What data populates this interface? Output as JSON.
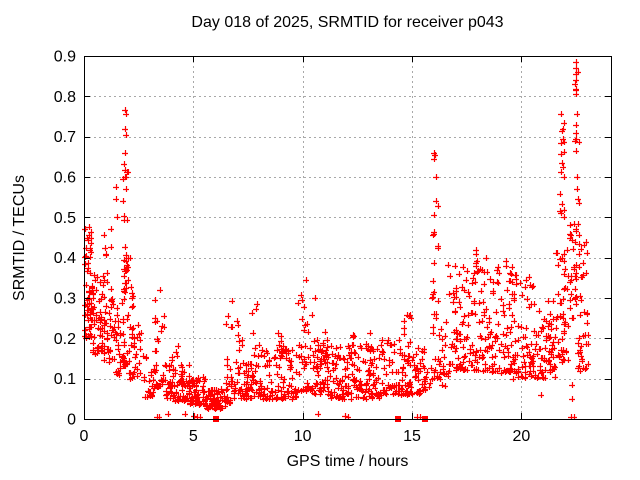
{
  "figure": {
    "title": "Day 018 of 2025, SRMTID for receiver p043",
    "xlabel": "GPS time / hours",
    "ylabel": "SRMTID / TECUs"
  },
  "chart_data": {
    "type": "scatter",
    "title": "Day 018 of 2025, SRMTID for receiver p043",
    "xlabel": "GPS time / hours",
    "ylabel": "SRMTID / TECUs",
    "xlim": [
      0,
      24.1
    ],
    "ylim": [
      0,
      0.9
    ],
    "xticks": {
      "values": [
        0,
        5,
        10,
        15,
        20
      ],
      "labels": [
        "0",
        "5",
        "10",
        "15",
        "20"
      ]
    },
    "yticks": {
      "values": [
        0,
        0.1,
        0.2,
        0.3,
        0.4,
        0.5,
        0.6,
        0.7,
        0.8,
        0.9
      ],
      "labels": [
        "0",
        "0.1",
        "0.2",
        "0.3",
        "0.4",
        "0.5",
        "0.6",
        "0.7",
        "0.8",
        "0.9"
      ]
    },
    "grid": true,
    "legend_position": "none",
    "series_name": "SRMTID",
    "marker": "plus",
    "marker_color": "#ff0000",
    "grid_color": "#a8a8a8",
    "border_color": "#000000",
    "background_color": "#ffffff",
    "seed": 43,
    "clusters": [
      {
        "x0": 0.02,
        "x1": 0.35,
        "y0": 0.2,
        "y1": 0.48,
        "n": 45,
        "bias": 1.4
      },
      {
        "x0": 0.05,
        "x1": 0.45,
        "y0": 0.26,
        "y1": 0.34,
        "n": 18,
        "bias": 1.0
      },
      {
        "x0": 0.3,
        "x1": 0.95,
        "y0": 0.16,
        "y1": 0.36,
        "n": 55,
        "bias": 1.6
      },
      {
        "x0": 0.9,
        "x1": 1.3,
        "y0": 0.14,
        "y1": 0.48,
        "n": 35,
        "bias": 2.0
      },
      {
        "x0": 1.3,
        "x1": 1.65,
        "y0": 0.11,
        "y1": 0.3,
        "n": 26,
        "bias": 1.8
      },
      {
        "x0": 1.75,
        "x1": 2.0,
        "y0": 0.13,
        "y1": 0.66,
        "n": 40,
        "bias": 2.0
      },
      {
        "x0": 1.8,
        "x1": 2.0,
        "y0": 0.28,
        "y1": 0.4,
        "n": 14,
        "bias": 1.0
      },
      {
        "x0": 2.0,
        "x1": 2.25,
        "y0": 0.22,
        "y1": 0.4,
        "n": 12,
        "bias": 1.4
      },
      {
        "x0": 2.05,
        "x1": 2.6,
        "y0": 0.1,
        "y1": 0.24,
        "n": 30,
        "bias": 1.6
      },
      {
        "x0": 2.6,
        "x1": 3.2,
        "y0": 0.055,
        "y1": 0.16,
        "n": 24,
        "bias": 1.5
      },
      {
        "x0": 3.25,
        "x1": 3.7,
        "y0": 0.08,
        "y1": 0.33,
        "n": 32,
        "bias": 2.2
      },
      {
        "x0": 3.7,
        "x1": 4.85,
        "y0": 0.045,
        "y1": 0.135,
        "n": 75,
        "bias": 1.6
      },
      {
        "x0": 4.0,
        "x1": 4.35,
        "y0": 0.12,
        "y1": 0.19,
        "n": 7,
        "bias": 1.2
      },
      {
        "x0": 4.85,
        "x1": 5.6,
        "y0": 0.035,
        "y1": 0.105,
        "n": 60,
        "bias": 1.5
      },
      {
        "x0": 5.6,
        "x1": 6.45,
        "y0": 0.025,
        "y1": 0.075,
        "n": 55,
        "bias": 1.3
      },
      {
        "x0": 6.45,
        "x1": 6.8,
        "y0": 0.04,
        "y1": 0.31,
        "n": 26,
        "bias": 2.4
      },
      {
        "x0": 6.8,
        "x1": 7.65,
        "y0": 0.05,
        "y1": 0.145,
        "n": 48,
        "bias": 1.5
      },
      {
        "x0": 7.0,
        "x1": 7.25,
        "y0": 0.12,
        "y1": 0.25,
        "n": 8,
        "bias": 1.4
      },
      {
        "x0": 7.65,
        "x1": 8.1,
        "y0": 0.055,
        "y1": 0.29,
        "n": 30,
        "bias": 2.2
      },
      {
        "x0": 8.1,
        "x1": 9.75,
        "y0": 0.05,
        "y1": 0.175,
        "n": 95,
        "bias": 1.6
      },
      {
        "x0": 8.85,
        "x1": 9.1,
        "y0": 0.14,
        "y1": 0.215,
        "n": 9,
        "bias": 1.2
      },
      {
        "x0": 9.75,
        "x1": 10.45,
        "y0": 0.07,
        "y1": 0.31,
        "n": 38,
        "bias": 2.0
      },
      {
        "x0": 10.45,
        "x1": 11.25,
        "y0": 0.06,
        "y1": 0.2,
        "n": 55,
        "bias": 1.6
      },
      {
        "x0": 10.9,
        "x1": 11.15,
        "y0": 0.14,
        "y1": 0.25,
        "n": 8,
        "bias": 1.2
      },
      {
        "x0": 11.25,
        "x1": 13.6,
        "y0": 0.05,
        "y1": 0.185,
        "n": 140,
        "bias": 1.6
      },
      {
        "x0": 12.2,
        "x1": 12.45,
        "y0": 0.12,
        "y1": 0.225,
        "n": 10,
        "bias": 1.2
      },
      {
        "x0": 12.9,
        "x1": 13.15,
        "y0": 0.12,
        "y1": 0.22,
        "n": 8,
        "bias": 1.2
      },
      {
        "x0": 13.6,
        "x1": 15.35,
        "y0": 0.06,
        "y1": 0.2,
        "n": 100,
        "bias": 1.6
      },
      {
        "x0": 14.6,
        "x1": 15.0,
        "y0": 0.14,
        "y1": 0.27,
        "n": 12,
        "bias": 1.3
      },
      {
        "x0": 15.35,
        "x1": 15.85,
        "y0": 0.07,
        "y1": 0.19,
        "n": 24,
        "bias": 1.5
      },
      {
        "x0": 15.9,
        "x1": 16.25,
        "y0": 0.1,
        "y1": 0.56,
        "n": 30,
        "bias": 2.0
      },
      {
        "x0": 16.25,
        "x1": 16.65,
        "y0": 0.08,
        "y1": 0.26,
        "n": 20,
        "bias": 1.7
      },
      {
        "x0": 16.65,
        "x1": 18.25,
        "y0": 0.12,
        "y1": 0.385,
        "n": 110,
        "bias": 1.8
      },
      {
        "x0": 17.9,
        "x1": 18.15,
        "y0": 0.37,
        "y1": 0.435,
        "n": 5,
        "bias": 1.0
      },
      {
        "x0": 18.25,
        "x1": 19.6,
        "y0": 0.115,
        "y1": 0.4,
        "n": 95,
        "bias": 1.8
      },
      {
        "x0": 19.6,
        "x1": 20.6,
        "y0": 0.1,
        "y1": 0.36,
        "n": 70,
        "bias": 1.7
      },
      {
        "x0": 20.6,
        "x1": 21.6,
        "y0": 0.1,
        "y1": 0.3,
        "n": 68,
        "bias": 1.6
      },
      {
        "x0": 21.6,
        "x1": 22.15,
        "y0": 0.14,
        "y1": 0.43,
        "n": 45,
        "bias": 1.5
      },
      {
        "x0": 21.75,
        "x1": 21.98,
        "y0": 0.5,
        "y1": 0.77,
        "n": 13,
        "bias": 1.4
      },
      {
        "x0": 22.2,
        "x1": 22.5,
        "y0": 0.25,
        "y1": 0.5,
        "n": 26,
        "bias": 1.2
      },
      {
        "x0": 22.42,
        "x1": 22.62,
        "y0": 0.46,
        "y1": 0.89,
        "n": 13,
        "bias": 1.1
      },
      {
        "x0": 22.5,
        "x1": 23.05,
        "y0": 0.12,
        "y1": 0.46,
        "n": 45,
        "bias": 1.4
      }
    ],
    "outlier_points": [
      [
        1.45,
        0.575
      ],
      [
        1.48,
        0.545
      ],
      [
        1.5,
        0.5
      ],
      [
        1.86,
        0.765
      ],
      [
        1.9,
        0.755
      ],
      [
        1.88,
        0.72
      ],
      [
        1.92,
        0.705
      ],
      [
        10.15,
        0.345
      ],
      [
        10.55,
        0.3
      ],
      [
        16.0,
        0.66
      ],
      [
        16.05,
        0.655
      ],
      [
        16.02,
        0.645
      ],
      [
        16.08,
        0.6
      ],
      [
        21.8,
        0.755
      ],
      [
        21.85,
        0.715
      ],
      [
        21.9,
        0.695
      ],
      [
        21.82,
        0.685
      ],
      [
        21.88,
        0.635
      ],
      [
        21.92,
        0.625
      ],
      [
        22.5,
        0.885
      ],
      [
        22.5,
        0.855
      ],
      [
        22.52,
        0.84
      ],
      [
        22.48,
        0.815
      ],
      [
        22.5,
        0.805
      ],
      [
        22.55,
        0.755
      ],
      [
        22.5,
        0.71
      ],
      [
        22.52,
        0.695
      ],
      [
        22.48,
        0.665
      ],
      [
        22.3,
        0.085
      ],
      [
        22.32,
        0.05
      ],
      [
        20.9,
        0.06
      ]
    ],
    "near_axis_points": [
      [
        3.35,
        0.006
      ],
      [
        3.45,
        0.006
      ],
      [
        3.82,
        0.012
      ],
      [
        4.62,
        0.012
      ],
      [
        5.05,
        0.008
      ],
      [
        5.15,
        0.005
      ],
      [
        5.3,
        0.006
      ],
      [
        10.7,
        0.012
      ],
      [
        11.95,
        0.007
      ],
      [
        12.05,
        0.005
      ],
      [
        15.25,
        0.006
      ],
      [
        15.38,
        0.005
      ],
      [
        22.25,
        0.006
      ],
      [
        22.4,
        0.006
      ]
    ],
    "flag_squares_x": [
      6.05,
      14.35,
      15.6
    ]
  }
}
